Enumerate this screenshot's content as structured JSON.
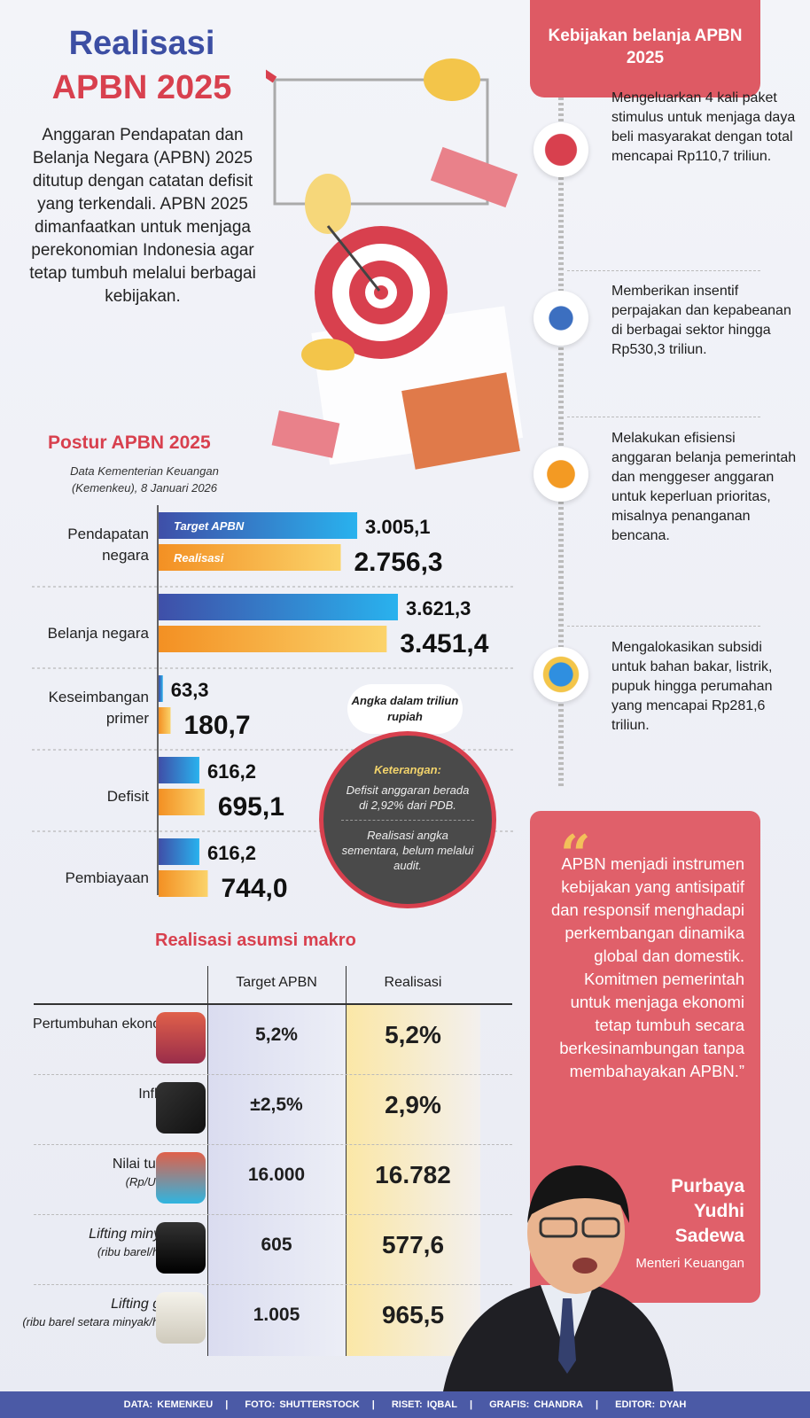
{
  "header": {
    "title_line1": "Realisasi",
    "title_line2": "APBN 2025",
    "intro": "Anggaran Pendapatan dan Belanja Negara (APBN) 2025 ditutup dengan catatan defisit yang terkendali. APBN 2025 dimanfaatkan untuk menjaga perekonomian Indonesia agar tetap tumbuh melalui berbagai kebijakan."
  },
  "policy": {
    "title": "Kebijakan belanja APBN 2025",
    "items": [
      {
        "icon": "stimulus-stack-icon",
        "text": "Mengeluarkan 4 kali paket stimulus untuk menjaga daya beli masyarakat dengan total mencapai Rp110,7 triliun."
      },
      {
        "icon": "calculator-receipt-icon",
        "text": "Memberikan insentif perpajakan dan kepabeanan di berbagai sektor hingga Rp530,3 triliun."
      },
      {
        "icon": "budget-cart-icon",
        "text": "Melakukan efisiensi anggaran belanja pemerintah dan menggeser anggaran untuk keperluan prioritas, misalnya penanganan bencana."
      },
      {
        "icon": "energy-subsidy-icon",
        "text": "Mengalokasikan subsidi untuk bahan bakar, listrik, pupuk hingga perumahan yang mencapai Rp281,6 triliun."
      }
    ]
  },
  "postur": {
    "title": "Postur APBN 2025",
    "source": "Data Kementerian Keuangan (Kemenkeu), 8 Januari 2026",
    "unit_note": "Angka dalam triliun rupiah",
    "note": {
      "title": "Keterangan:",
      "line1": "Defisit anggaran berada di 2,92% dari PDB.",
      "line2": "Realisasi angka sementara, belum melalui audit."
    }
  },
  "chart_data": {
    "type": "bar",
    "orientation": "horizontal",
    "unit": "triliun rupiah",
    "categories": [
      "Pendapatan negara",
      "Belanja negara",
      "Keseimbangan primer",
      "Defisit",
      "Pembiayaan"
    ],
    "series": [
      {
        "name": "Target APBN",
        "values": [
          3005.1,
          3621.3,
          63.3,
          616.2,
          616.2
        ],
        "labels": [
          "3.005,1",
          "3.621,3",
          "63,3",
          "616,2",
          "616,2"
        ],
        "color": "#3f4fa8"
      },
      {
        "name": "Realisasi",
        "values": [
          2756.3,
          3451.4,
          180.7,
          695.1,
          744.0
        ],
        "labels": [
          "2.756,3",
          "3.451,4",
          "180,7",
          "695,1",
          "744,0"
        ],
        "color": "#f39a23"
      }
    ],
    "xlim": [
      0,
      3621.3
    ],
    "grid": false,
    "legend": "inside-first-bars"
  },
  "macro": {
    "title": "Realisasi asumsi makro",
    "col_target": "Target APBN",
    "col_real": "Realisasi",
    "rows": [
      {
        "label": "Pertumbuhan ekonomi",
        "sub": "",
        "target": "5,2%",
        "real": "5,2%",
        "icon": "growth-stack-icon"
      },
      {
        "label": "Inflasi",
        "sub": "",
        "target": "±2,5%",
        "real": "2,9%",
        "icon": "inflation-chart-icon"
      },
      {
        "label": "Nilai tukar",
        "sub": "(Rp/USD)",
        "target": "16.000",
        "real": "16.782",
        "icon": "exchange-icon"
      },
      {
        "label": "Lifting minyak",
        "sub": "(ribu barel/hari)",
        "target": "605",
        "real": "577,6",
        "icon": "oil-barrel-icon"
      },
      {
        "label": "Lifting gas",
        "sub": "(ribu barel setara minyak/hari)",
        "target": "1.005",
        "real": "965,5",
        "icon": "gas-tank-icon"
      }
    ]
  },
  "quote": {
    "text": "APBN menjadi instrumen kebijakan yang antisipatif dan responsif menghadapi perkembangan dinamika global dan domestik. Komitmen pemerintah untuk menjaga ekonomi tetap tumbuh secara berkesinambungan tanpa membahayakan APBN.”",
    "name": "Purbaya Yudhi Sadewa",
    "role": "Menteri Keuangan"
  },
  "footer": [
    "DATA: KEMENKEU",
    "FOTO: SHUTTERSTOCK",
    "RISET: IQBAL",
    "GRAFIS: CHANDRA",
    "EDITOR: DYAH"
  ],
  "colors": {
    "red": "#d8404e",
    "blue": "#3c4ea3",
    "panel": "#e0606a",
    "footer": "#4b5aa6"
  }
}
